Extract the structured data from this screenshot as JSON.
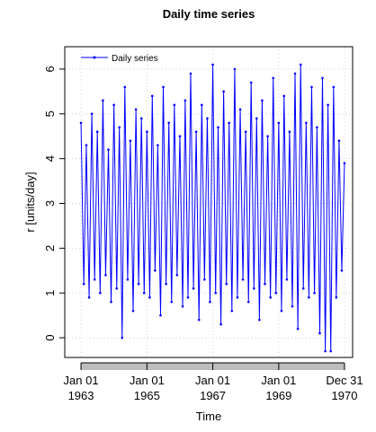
{
  "chart_data": {
    "type": "line",
    "title": "Daily time series",
    "x_label": "Time",
    "y_label": "r [units/day]",
    "x": [
      "1963-01-01",
      "1963-02-01",
      "1963-03-01",
      "1963-04-01",
      "1963-05-01",
      "1963-06-01",
      "1963-07-01",
      "1963-08-01",
      "1963-09-01",
      "1963-10-01",
      "1963-11-01",
      "1963-12-01",
      "1964-01-01",
      "1964-02-01",
      "1964-03-01",
      "1964-04-01",
      "1964-05-01",
      "1964-06-01",
      "1964-07-01",
      "1964-08-01",
      "1964-09-01",
      "1964-10-01",
      "1964-11-01",
      "1964-12-01",
      "1965-01-01",
      "1965-02-01",
      "1965-03-01",
      "1965-04-01",
      "1965-05-01",
      "1965-06-01",
      "1965-07-01",
      "1965-08-01",
      "1965-09-01",
      "1965-10-01",
      "1965-11-01",
      "1965-12-01",
      "1966-01-01",
      "1966-02-01",
      "1966-03-01",
      "1966-04-01",
      "1966-05-01",
      "1966-06-01",
      "1966-07-01",
      "1966-08-01",
      "1966-09-01",
      "1966-10-01",
      "1966-11-01",
      "1966-12-01",
      "1967-01-01",
      "1967-02-01",
      "1967-03-01",
      "1967-04-01",
      "1967-05-01",
      "1967-06-01",
      "1967-07-01",
      "1967-08-01",
      "1967-09-01",
      "1967-10-01",
      "1967-11-01",
      "1967-12-01",
      "1968-01-01",
      "1968-02-01",
      "1968-03-01",
      "1968-04-01",
      "1968-05-01",
      "1968-06-01",
      "1968-07-01",
      "1968-08-01",
      "1968-09-01",
      "1968-10-01",
      "1968-11-01",
      "1968-12-01",
      "1969-01-01",
      "1969-02-01",
      "1969-03-01",
      "1969-04-01",
      "1969-05-01",
      "1969-06-01",
      "1969-07-01",
      "1969-08-01",
      "1969-09-01",
      "1969-10-01",
      "1969-11-01",
      "1969-12-01",
      "1970-01-01",
      "1970-02-01",
      "1970-03-01",
      "1970-04-01",
      "1970-05-01",
      "1970-06-01",
      "1970-07-01",
      "1970-08-01",
      "1970-09-01",
      "1970-10-01",
      "1970-11-01",
      "1970-12-01",
      "1970-12-31"
    ],
    "series": [
      {
        "name": "Daily series",
        "color": "#0000ff",
        "values": [
          4.8,
          1.2,
          4.3,
          0.9,
          5.0,
          1.3,
          4.6,
          1.0,
          5.3,
          1.4,
          4.2,
          0.8,
          5.2,
          1.1,
          4.7,
          0.0,
          5.6,
          1.3,
          4.4,
          0.6,
          5.1,
          1.2,
          4.9,
          1.0,
          4.6,
          0.9,
          5.4,
          1.5,
          4.3,
          0.5,
          5.6,
          1.2,
          4.8,
          0.8,
          5.2,
          1.4,
          4.5,
          0.7,
          5.3,
          0.9,
          5.9,
          1.1,
          4.6,
          0.4,
          5.2,
          1.3,
          4.9,
          0.8,
          6.1,
          1.0,
          4.7,
          0.3,
          5.5,
          1.2,
          4.8,
          0.6,
          6.0,
          0.9,
          5.1,
          1.3,
          4.6,
          0.8,
          5.7,
          1.1,
          4.9,
          0.4,
          5.3,
          1.2,
          4.5,
          0.9,
          5.8,
          1.0,
          4.8,
          0.6,
          5.4,
          1.3,
          4.6,
          0.7,
          5.9,
          0.2,
          6.1,
          1.1,
          4.8,
          0.9,
          5.6,
          1.0,
          4.7,
          0.1,
          5.8,
          -0.3,
          5.2,
          -0.3,
          5.6,
          0.9,
          4.4,
          1.5,
          3.9
        ]
      }
    ],
    "xlim": [
      "1962-07-05",
      "1971-03-31"
    ],
    "xticks": [
      {
        "value": "1963-01-01",
        "label": [
          "Jan 01",
          "1963"
        ]
      },
      {
        "value": "1965-01-01",
        "label": [
          "Jan 01",
          "1965"
        ]
      },
      {
        "value": "1967-01-01",
        "label": [
          "Jan 01",
          "1967"
        ]
      },
      {
        "value": "1969-01-01",
        "label": [
          "Jan 01",
          "1969"
        ]
      },
      {
        "value": "1970-12-31",
        "label": [
          "Dec 31",
          "1970"
        ]
      }
    ],
    "ylim": [
      -0.44,
      6.5
    ],
    "yticks": [
      0,
      1,
      2,
      3,
      4,
      5,
      6
    ],
    "grid": true,
    "legend": "top-left"
  }
}
